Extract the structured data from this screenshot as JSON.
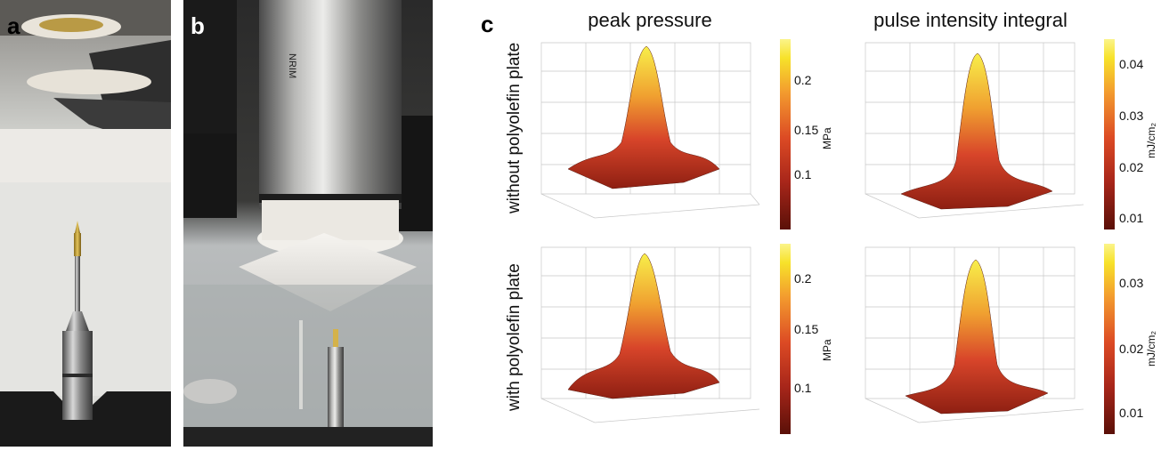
{
  "panels": {
    "a": "a",
    "b": "b",
    "c": "c"
  },
  "photo_b_label": {
    "line1": "NRIM",
    "line2": "..."
  },
  "columns": {
    "left": "peak pressure",
    "right": "pulse intensity integral"
  },
  "rows": {
    "top": "without polyolefin plate",
    "bottom": "with polyolefin plate"
  },
  "colorbars": [
    {
      "unit": "MPa",
      "ticks": [
        "0.2",
        "0.15",
        "0.1"
      ]
    },
    {
      "unit": "mJ/cm₂",
      "ticks": [
        "0.04",
        "0.03",
        "0.02",
        "0.01"
      ]
    },
    {
      "unit": "MPa",
      "ticks": [
        "0.2",
        "0.15",
        "0.1"
      ]
    },
    {
      "unit": "mJ/cm₂",
      "ticks": [
        "0.03",
        "0.02",
        "0.01"
      ]
    }
  ],
  "colors": {
    "peak": "#f8ef4a",
    "mid": "#e5552a",
    "base": "#8e1f12"
  }
}
